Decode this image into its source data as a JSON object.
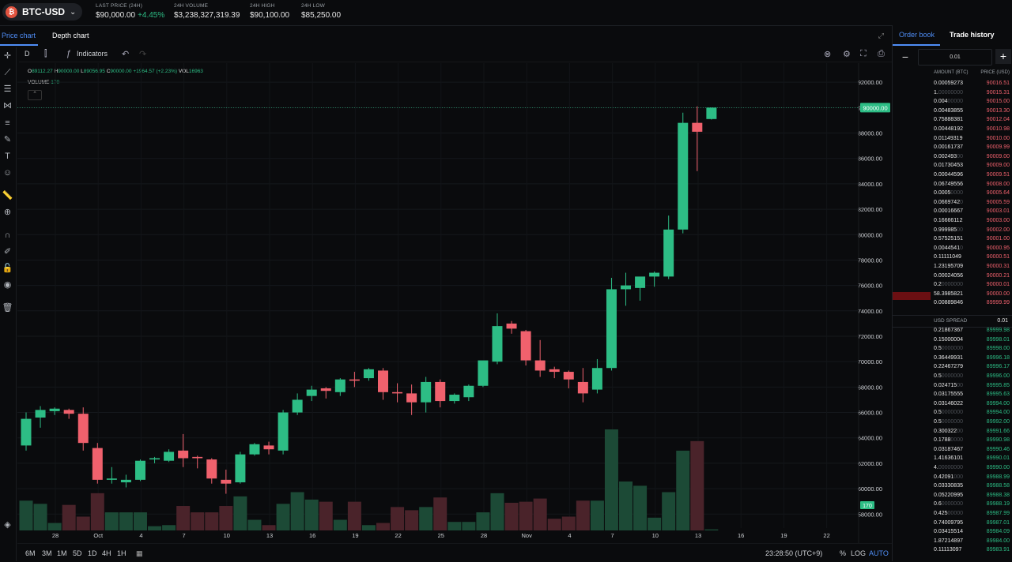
{
  "header": {
    "pair": "BTC-USD",
    "coin_symbol": "₿",
    "stats": [
      {
        "label": "LAST PRICE (24H)",
        "value": "$90,000.00",
        "change": "+4.45%"
      },
      {
        "label": "24H VOLUME",
        "value": "$3,238,327,319.39"
      },
      {
        "label": "24H HIGH",
        "value": "$90,100.00"
      },
      {
        "label": "24H LOW",
        "value": "$85,250.00"
      }
    ]
  },
  "chart_tabs": {
    "price": "Price chart",
    "depth": "Depth chart"
  },
  "toolbar": {
    "interval": "D",
    "indicators": "Indicators"
  },
  "legend": {
    "o_label": "O",
    "o": "89112.27",
    "h_label": "H",
    "h": "90000.00",
    "l_label": "L",
    "l": "89056.95",
    "c_label": "C",
    "c": "90000.00",
    "change": "+1964.57 (+2.23%)",
    "vol_label": "VOL",
    "vol": "16963",
    "volume_label": "VOLUME",
    "volume_value": "170"
  },
  "chart_data": {
    "type": "candlestick",
    "title": "",
    "y_ticks": [
      58000,
      60000,
      62000,
      64000,
      66000,
      68000,
      70000,
      72000,
      74000,
      76000,
      78000,
      80000,
      82000,
      84000,
      86000,
      88000,
      90000,
      92000
    ],
    "ylim": [
      56900,
      93500
    ],
    "last_price_label": "90000.00",
    "volume_badge": "170",
    "x_tick_labels": [
      "28",
      "Oct",
      "4",
      "7",
      "10",
      "13",
      "16",
      "19",
      "22",
      "25",
      "28",
      "Nov",
      "4",
      "7",
      "10",
      "13",
      "16",
      "19",
      "22"
    ],
    "candles": [
      {
        "o": 63400,
        "h": 66000,
        "l": 63000,
        "c": 65500
      },
      {
        "o": 65600,
        "h": 66500,
        "l": 64800,
        "c": 66200
      },
      {
        "o": 66100,
        "h": 66400,
        "l": 65800,
        "c": 66300
      },
      {
        "o": 66200,
        "h": 66300,
        "l": 65500,
        "c": 65900
      },
      {
        "o": 65900,
        "h": 66400,
        "l": 63000,
        "c": 63600
      },
      {
        "o": 63200,
        "h": 63600,
        "l": 60400,
        "c": 60700
      },
      {
        "o": 60700,
        "h": 61700,
        "l": 60400,
        "c": 60800
      },
      {
        "o": 60500,
        "h": 61100,
        "l": 60100,
        "c": 60700
      },
      {
        "o": 60700,
        "h": 62300,
        "l": 60600,
        "c": 62200
      },
      {
        "o": 62300,
        "h": 62500,
        "l": 62000,
        "c": 62400
      },
      {
        "o": 62200,
        "h": 63100,
        "l": 62100,
        "c": 62900
      },
      {
        "o": 63000,
        "h": 64300,
        "l": 61700,
        "c": 62400
      },
      {
        "o": 62500,
        "h": 62600,
        "l": 61600,
        "c": 62400
      },
      {
        "o": 62300,
        "h": 62400,
        "l": 60400,
        "c": 60800
      },
      {
        "o": 60700,
        "h": 61500,
        "l": 59600,
        "c": 60400
      },
      {
        "o": 60500,
        "h": 62900,
        "l": 60400,
        "c": 62700
      },
      {
        "o": 62700,
        "h": 63600,
        "l": 62600,
        "c": 63500
      },
      {
        "o": 63400,
        "h": 63700,
        "l": 62700,
        "c": 63100
      },
      {
        "o": 63000,
        "h": 66200,
        "l": 62700,
        "c": 66000
      },
      {
        "o": 66000,
        "h": 67500,
        "l": 65800,
        "c": 67000
      },
      {
        "o": 67300,
        "h": 68100,
        "l": 66900,
        "c": 67800
      },
      {
        "o": 67900,
        "h": 68000,
        "l": 67100,
        "c": 67700
      },
      {
        "o": 67600,
        "h": 68700,
        "l": 67300,
        "c": 68600
      },
      {
        "o": 68600,
        "h": 69200,
        "l": 68000,
        "c": 68500
      },
      {
        "o": 68700,
        "h": 69500,
        "l": 68500,
        "c": 69400
      },
      {
        "o": 69300,
        "h": 69500,
        "l": 67000,
        "c": 67600
      },
      {
        "o": 67600,
        "h": 68300,
        "l": 66800,
        "c": 67500
      },
      {
        "o": 67500,
        "h": 68200,
        "l": 65800,
        "c": 66800
      },
      {
        "o": 66800,
        "h": 68800,
        "l": 66000,
        "c": 68400
      },
      {
        "o": 68400,
        "h": 68600,
        "l": 66400,
        "c": 66900
      },
      {
        "o": 66900,
        "h": 67500,
        "l": 66700,
        "c": 67400
      },
      {
        "o": 67200,
        "h": 68200,
        "l": 66900,
        "c": 68100
      },
      {
        "o": 68100,
        "h": 70000,
        "l": 68000,
        "c": 70100
      },
      {
        "o": 70000,
        "h": 73800,
        "l": 69800,
        "c": 72800
      },
      {
        "o": 73000,
        "h": 73200,
        "l": 72200,
        "c": 72600
      },
      {
        "o": 72400,
        "h": 72500,
        "l": 69700,
        "c": 70100
      },
      {
        "o": 70100,
        "h": 71700,
        "l": 68800,
        "c": 69300
      },
      {
        "o": 69400,
        "h": 69600,
        "l": 68700,
        "c": 69200
      },
      {
        "o": 69200,
        "h": 69300,
        "l": 67900,
        "c": 68600
      },
      {
        "o": 68400,
        "h": 69500,
        "l": 66800,
        "c": 67500
      },
      {
        "o": 67800,
        "h": 70200,
        "l": 67500,
        "c": 69500
      },
      {
        "o": 69500,
        "h": 76600,
        "l": 69300,
        "c": 75700
      },
      {
        "o": 75700,
        "h": 77000,
        "l": 74400,
        "c": 76000
      },
      {
        "o": 75800,
        "h": 76600,
        "l": 74800,
        "c": 76700
      },
      {
        "o": 76700,
        "h": 77100,
        "l": 75900,
        "c": 77000
      },
      {
        "o": 76700,
        "h": 81500,
        "l": 76500,
        "c": 80400
      },
      {
        "o": 80400,
        "h": 89600,
        "l": 80100,
        "c": 88800
      },
      {
        "o": 88800,
        "h": 90100,
        "l": 85000,
        "c": 88100
      },
      {
        "o": 89100,
        "h": 90000,
        "l": 89056,
        "c": 90000
      }
    ],
    "volumes": [
      28,
      25,
      7,
      24,
      13,
      35,
      17,
      17,
      17,
      4,
      5,
      23,
      17,
      17,
      23,
      32,
      10,
      5,
      25,
      36,
      29,
      27,
      10,
      27,
      5,
      7,
      22,
      19,
      22,
      31,
      8,
      8,
      17,
      35,
      26,
      27,
      30,
      11,
      13,
      28,
      28,
      95,
      46,
      42,
      12,
      36,
      75,
      84,
      1
    ],
    "volume_max": 95
  },
  "order_book": {
    "tabs": [
      "Order book",
      "Trade history"
    ],
    "aggregation": "0.01",
    "headers": {
      "amount": "AMOUNT (BTC)",
      "price": "PRICE (USD)"
    },
    "asks": [
      {
        "amt": "0.00059273",
        "dim": "",
        "price": "90016.51"
      },
      {
        "amt": "1.",
        "dim": "00000000",
        "price": "90015.31"
      },
      {
        "amt": "0.004",
        "dim": "00000",
        "price": "90015.00"
      },
      {
        "amt": "0.00483855",
        "dim": "",
        "price": "90013.30"
      },
      {
        "amt": "0.75888381",
        "dim": "",
        "price": "90012.04"
      },
      {
        "amt": "0.00448192",
        "dim": "",
        "price": "90010.98"
      },
      {
        "amt": "0.01149319",
        "dim": "",
        "price": "90010.00"
      },
      {
        "amt": "0.00161737",
        "dim": "",
        "price": "90009.99"
      },
      {
        "amt": "0.002493",
        "dim": "00",
        "price": "90009.00"
      },
      {
        "amt": "0.01730453",
        "dim": "",
        "price": "90009.00"
      },
      {
        "amt": "0.00044596",
        "dim": "",
        "price": "90009.51"
      },
      {
        "amt": "0.06749556",
        "dim": "",
        "price": "90008.00"
      },
      {
        "amt": "0.0005",
        "dim": "0000",
        "price": "90005.64"
      },
      {
        "amt": "0.0669742",
        "dim": "0",
        "price": "90005.59"
      },
      {
        "amt": "0.00016667",
        "dim": "",
        "price": "90003.01"
      },
      {
        "amt": "0.16666112",
        "dim": "",
        "price": "90003.00"
      },
      {
        "amt": "0.999985",
        "dim": "00",
        "price": "90002.00"
      },
      {
        "amt": "0.57525151",
        "dim": "",
        "price": "90001.00"
      },
      {
        "amt": "0.0044541",
        "dim": "0",
        "price": "90000.95"
      },
      {
        "amt": "0.11111049",
        "dim": "",
        "price": "90000.51"
      },
      {
        "amt": "1.23195709",
        "dim": "",
        "price": "90000.31"
      },
      {
        "amt": "0.00024056",
        "dim": "",
        "price": "90000.21"
      },
      {
        "amt": "0.2",
        "dim": "0000000",
        "price": "90000.01"
      },
      {
        "amt": "58.3985821",
        "dim": "",
        "price": "90000.00"
      },
      {
        "amt": "0.00889846",
        "dim": "",
        "price": "89999.99"
      }
    ],
    "spread": {
      "label": "USD SPREAD",
      "value": "0.01"
    },
    "bids": [
      {
        "amt": "0.21867367",
        "dim": "",
        "price": "89999.98"
      },
      {
        "amt": "0.15000004",
        "dim": "",
        "price": "89998.01"
      },
      {
        "amt": "0.5",
        "dim": "0000000",
        "price": "89998.00"
      },
      {
        "amt": "0.36449931",
        "dim": "",
        "price": "89996.18"
      },
      {
        "amt": "0.22467279",
        "dim": "",
        "price": "89996.17"
      },
      {
        "amt": "0.5",
        "dim": "0000000",
        "price": "89996.00"
      },
      {
        "amt": "0.024715",
        "dim": "00",
        "price": "89995.85"
      },
      {
        "amt": "0.03175555",
        "dim": "",
        "price": "89995.63"
      },
      {
        "amt": "0.03146022",
        "dim": "",
        "price": "89994.00"
      },
      {
        "amt": "0.5",
        "dim": "0000000",
        "price": "89994.00"
      },
      {
        "amt": "0.5",
        "dim": "0000000",
        "price": "89992.00"
      },
      {
        "amt": "0.300322",
        "dim": "00",
        "price": "89991.66"
      },
      {
        "amt": "0.1788",
        "dim": "0000",
        "price": "89990.98"
      },
      {
        "amt": "0.03187467",
        "dim": "",
        "price": "89990.46"
      },
      {
        "amt": "1.41636101",
        "dim": "",
        "price": "89990.01"
      },
      {
        "amt": "4.",
        "dim": "00000000",
        "price": "89990.00"
      },
      {
        "amt": "0.42091",
        "dim": "000",
        "price": "89988.99"
      },
      {
        "amt": "0.03330835",
        "dim": "",
        "price": "89988.58"
      },
      {
        "amt": "0.05220995",
        "dim": "",
        "price": "89988.38"
      },
      {
        "amt": "0.6",
        "dim": "0000000",
        "price": "89988.19"
      },
      {
        "amt": "0.425",
        "dim": "00000",
        "price": "89987.99"
      },
      {
        "amt": "0.74009795",
        "dim": "",
        "price": "89987.01"
      },
      {
        "amt": "0.03415514",
        "dim": "",
        "price": "89984.09"
      },
      {
        "amt": "1.87214897",
        "dim": "",
        "price": "89984.00"
      },
      {
        "amt": "0.11113097",
        "dim": "",
        "price": "89983.91"
      }
    ]
  },
  "bottom_bar": {
    "timeframes": [
      "6M",
      "3M",
      "1M",
      "5D",
      "1D",
      "4H",
      "1H"
    ],
    "time": "23:28:50 (UTC+9)",
    "percent": "%",
    "log": "LOG",
    "auto": "AUTO"
  },
  "colors": {
    "up": "#2dbd85",
    "down": "#f0616d",
    "up_vol": "#1c4a36",
    "down_vol": "#4a232a",
    "accent": "#4f8ef7"
  }
}
